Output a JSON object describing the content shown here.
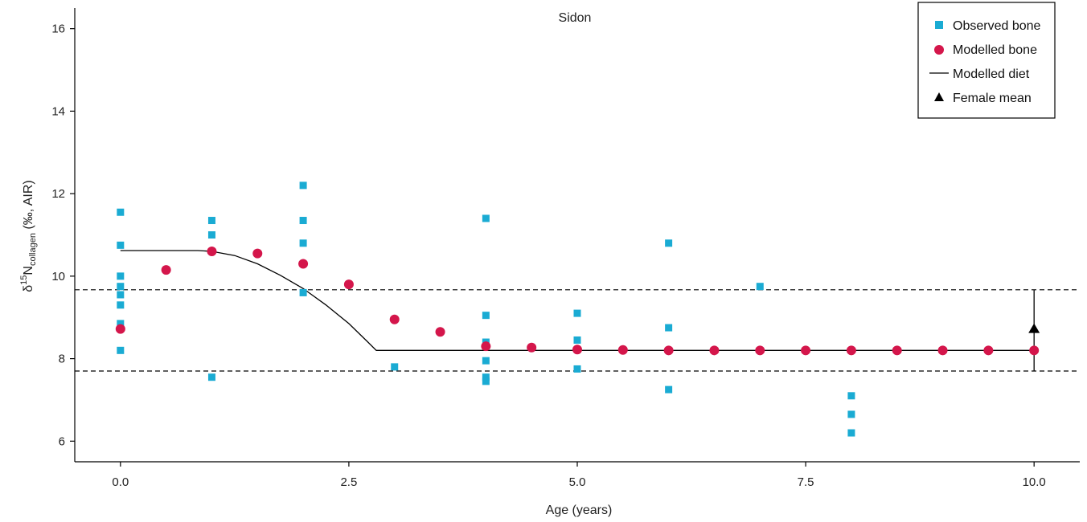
{
  "chart_data": {
    "type": "scatter",
    "title": "Sidon",
    "xlabel": "Age (years)",
    "ylabel": {
      "prefix": "δ",
      "superscript": "15",
      "main": "N",
      "subscript": "collagen",
      "suffix": " (‰, AIR)"
    },
    "xlim": [
      -0.5,
      10.5
    ],
    "ylim": [
      5.5,
      16.5
    ],
    "x_ticks": [
      0.0,
      2.5,
      5.0,
      7.5,
      10.0
    ],
    "x_tick_labels": [
      "0.0",
      "2.5",
      "5.0",
      "7.5",
      "10.0"
    ],
    "y_ticks": [
      6,
      8,
      10,
      12,
      14,
      16
    ],
    "y_tick_labels": [
      "6",
      "8",
      "10",
      "12",
      "14",
      "16"
    ],
    "grid": false,
    "legend_position": "top-right",
    "colors": {
      "observed": "#1aabd3",
      "modelled_bone": "#d4164b",
      "diet": "#000000",
      "female": "#000000"
    },
    "series": [
      {
        "name": "Observed bone",
        "kind": "square",
        "points": [
          [
            0,
            11.55
          ],
          [
            0,
            10.75
          ],
          [
            0,
            10.0
          ],
          [
            0,
            9.75
          ],
          [
            0,
            9.55
          ],
          [
            0,
            9.3
          ],
          [
            0,
            8.85
          ],
          [
            0,
            8.2
          ],
          [
            1,
            11.35
          ],
          [
            1,
            11.0
          ],
          [
            1,
            7.55
          ],
          [
            2,
            12.2
          ],
          [
            2,
            11.35
          ],
          [
            2,
            10.8
          ],
          [
            2,
            9.6
          ],
          [
            3,
            7.8
          ],
          [
            4,
            11.4
          ],
          [
            4,
            9.05
          ],
          [
            4,
            8.4
          ],
          [
            4,
            7.95
          ],
          [
            4,
            7.55
          ],
          [
            4,
            7.45
          ],
          [
            5,
            9.1
          ],
          [
            5,
            8.45
          ],
          [
            5,
            7.75
          ],
          [
            6,
            10.8
          ],
          [
            6,
            8.75
          ],
          [
            6,
            7.25
          ],
          [
            7,
            9.75
          ],
          [
            8,
            7.1
          ],
          [
            8,
            6.65
          ],
          [
            8,
            6.2
          ]
        ]
      },
      {
        "name": "Modelled bone",
        "kind": "circle",
        "points": [
          [
            0,
            8.72
          ],
          [
            0.5,
            10.15
          ],
          [
            1.0,
            10.6
          ],
          [
            1.5,
            10.55
          ],
          [
            2.0,
            10.3
          ],
          [
            2.5,
            9.8
          ],
          [
            3.0,
            8.95
          ],
          [
            3.5,
            8.65
          ],
          [
            4.0,
            8.3
          ],
          [
            4.5,
            8.27
          ],
          [
            5.0,
            8.22
          ],
          [
            5.5,
            8.21
          ],
          [
            6.0,
            8.2
          ],
          [
            6.5,
            8.2
          ],
          [
            7.0,
            8.2
          ],
          [
            7.5,
            8.2
          ],
          [
            8.0,
            8.2
          ],
          [
            8.5,
            8.2
          ],
          [
            9.0,
            8.2
          ],
          [
            9.5,
            8.2
          ],
          [
            10.0,
            8.2
          ]
        ]
      },
      {
        "name": "Modelled diet",
        "kind": "line",
        "points": [
          [
            0,
            10.62
          ],
          [
            0.85,
            10.62
          ],
          [
            1.0,
            10.6
          ],
          [
            1.25,
            10.5
          ],
          [
            1.5,
            10.3
          ],
          [
            1.75,
            10.02
          ],
          [
            2.0,
            9.7
          ],
          [
            2.25,
            9.3
          ],
          [
            2.5,
            8.85
          ],
          [
            2.7,
            8.42
          ],
          [
            2.8,
            8.2
          ],
          [
            10.0,
            8.2
          ]
        ]
      },
      {
        "name": "Female mean",
        "kind": "triangle",
        "points": [
          [
            10.0,
            8.72
          ]
        ],
        "error_range": [
          7.7,
          9.67
        ]
      }
    ],
    "reference_lines": [
      {
        "style": "dashed",
        "y": 9.67
      },
      {
        "style": "dashed",
        "y": 7.7
      }
    ]
  }
}
